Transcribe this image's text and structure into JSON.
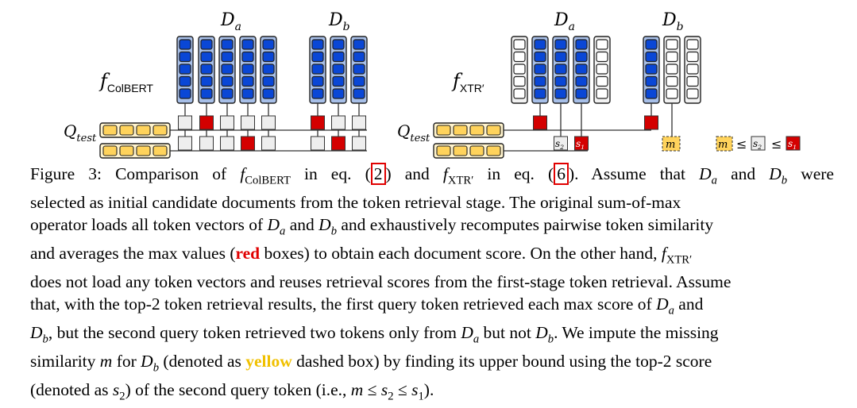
{
  "figure": {
    "left": {
      "model_label": "f",
      "model_sub": "ColBERT",
      "query_label": "Q",
      "query_sub": "test",
      "doc_a_label": "D",
      "doc_a_sub": "a",
      "doc_b_label": "D",
      "doc_b_sub": "b"
    },
    "right": {
      "model_label": "f",
      "model_sub": "XTR′",
      "query_label": "Q",
      "query_sub": "test",
      "doc_a_label": "D",
      "doc_a_sub": "a",
      "doc_b_label": "D",
      "doc_b_sub": "b",
      "score_s2": "s",
      "score_s2_sub": "2",
      "score_s1": "s",
      "score_s1_sub": "1",
      "missing_m": "m",
      "legend_m": "m",
      "legend_le1": "≤",
      "legend_s2": "s",
      "legend_s2_sub": "2",
      "legend_le2": "≤",
      "legend_s1": "s",
      "legend_s1_sub": "1"
    },
    "colors": {
      "token_blue": "#0a47d6",
      "column_blue": "#a7bfe8",
      "query_yellow": "#ffd35c",
      "max_red": "#d40000",
      "score_gray": "#eeeeee",
      "empty_white": "#ffffff"
    }
  },
  "caption": {
    "fig_num": "Figure 3:",
    "t1": " Comparison of ",
    "f1": "f",
    "f1_sub": "ColBERT",
    "t2": " in eq. (",
    "ref1": "2",
    "t3": ") and ",
    "f2": "f",
    "f2_sub": "XTR′",
    "t4": " in eq. (",
    "ref2": "6",
    "t5": ").  Assume that ",
    "da": "D",
    "da_sub": "a",
    "t6": " and ",
    "db": "D",
    "db_sub": "b",
    "t7": " were",
    "l2": "selected as initial candidate documents from the token retrieval stage.  The original sum-of-max",
    "l3a": "operator loads all token vectors of ",
    "l3b": " and ",
    "l3c": " and exhaustively recomputes pairwise token similarity",
    "l4a": "and averages the max values (",
    "l4_red": "red",
    "l4b": " boxes) to obtain each document score.  On the other hand, ",
    "l5": "does not load any token vectors and reuses retrieval scores from the first-stage token retrieval.  Assume",
    "l6a": "that, with the top-2 token retrieval results, the first query token retrieved each max score of ",
    "l6b": " and",
    "l7a": ", but the second query token retrieved two tokens only from ",
    "l7b": " but not ",
    "l7c": ".  We impute the missing",
    "l8a": "similarity ",
    "l8_m": "m",
    "l8b": " for ",
    "l8c": " (denoted as ",
    "l8_yellow": "yellow",
    "l8d": " dashed box) by finding its upper bound using the top-2 score",
    "l9a": "(denoted as ",
    "l9_s2": "s",
    "l9_s2_sub": "2",
    "l9b": ") of the second query token (i.e., ",
    "l9_m": "m",
    "l9_le1": " ≤ ",
    "l9_s": "s",
    "l9_s_sub": "2",
    "l9_le2": " ≤ ",
    "l9_s1": "s",
    "l9_s1_sub": "1",
    "l9c": ")."
  }
}
